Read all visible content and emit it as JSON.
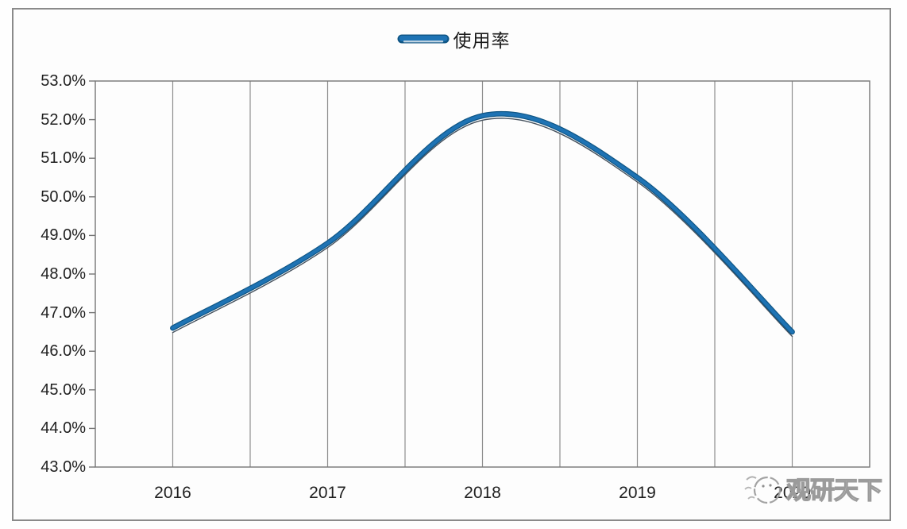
{
  "chart_data": {
    "type": "line",
    "title": "",
    "categories": [
      "2016",
      "2017",
      "2018",
      "2019",
      "2020"
    ],
    "series": [
      {
        "name": "使用率",
        "values": [
          46.6,
          48.8,
          52.1,
          50.5,
          46.5
        ]
      }
    ],
    "xlabel": "",
    "ylabel": "",
    "ylim": [
      43.0,
      53.0
    ],
    "ytick_step": 1.0,
    "ytick_labels": [
      "53.0%",
      "52.0%",
      "51.0%",
      "50.0%",
      "49.0%",
      "48.0%",
      "47.0%",
      "46.0%",
      "45.0%",
      "44.0%",
      "43.0%"
    ],
    "grid": "vertical-only",
    "vertical_gridlines_per_interval": 2,
    "legend_position": "top-center",
    "smooth": true
  },
  "legend": {
    "label": "使用率"
  },
  "watermark": {
    "text": "观研天下"
  },
  "colors": {
    "line": "#1E73B4",
    "line_outline": "#0F5584",
    "line_shadow": "#46525E",
    "line_highlight": "#FFFFFF",
    "grid": "#8F8F8F",
    "axis": "#767676",
    "tick_text": "#1F1F1F",
    "frame": "#8A8A8A",
    "watermark": "#9B9B9B"
  }
}
